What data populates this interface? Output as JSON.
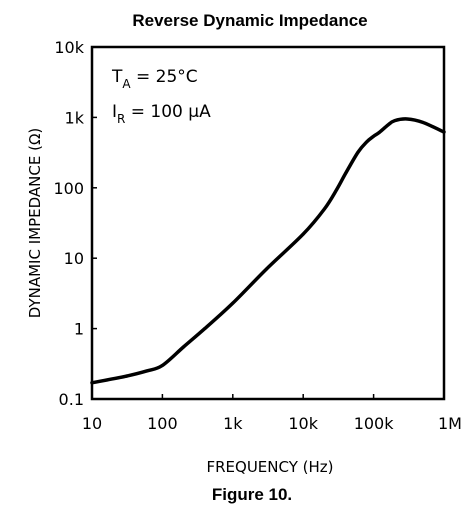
{
  "chart_data": {
    "type": "line",
    "title": "Reverse Dynamic Impedance",
    "xlabel": "FREQUENCY (Hz)",
    "ylabel": "DYNAMIC IMPEDANCE (Ω)",
    "x_scale": "log",
    "y_scale": "log",
    "xlim": [
      10,
      1000000
    ],
    "ylim": [
      0.1,
      10000
    ],
    "grid": false,
    "x_ticks": [
      "10",
      "100",
      "1k",
      "10k",
      "100k",
      "1M"
    ],
    "y_ticks": [
      "10k",
      "1k",
      "100",
      "10",
      "1",
      "0.1"
    ],
    "annotations": [
      {
        "main": "T",
        "sub": "A",
        "rest": " = 25°C"
      },
      {
        "main": "I",
        "sub": "R",
        "rest": " = 100 μA"
      }
    ],
    "series": [
      {
        "x": [
          10,
          30,
          60,
          100,
          200,
          400,
          1000,
          3000,
          10000,
          20000,
          30000,
          40000,
          60000,
          80000,
          100000,
          120000,
          160000,
          200000,
          300000,
          500000,
          1000000
        ],
        "y": [
          0.17,
          0.21,
          0.25,
          0.3,
          0.55,
          1.0,
          2.3,
          7,
          22,
          50,
          95,
          160,
          320,
          450,
          540,
          610,
          780,
          900,
          950,
          850,
          620
        ]
      }
    ]
  },
  "caption": "Figure 10.",
  "colors": {
    "line": "#000000",
    "background": "#ffffff"
  }
}
